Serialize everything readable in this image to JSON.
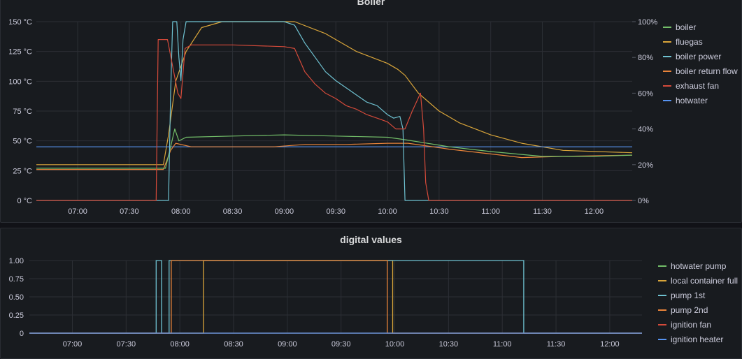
{
  "dashboard": {
    "panels": [
      {
        "title": "Boiler"
      },
      {
        "title": "digital values"
      }
    ]
  },
  "chart_data": [
    {
      "type": "line",
      "title": "Boiler",
      "x_ticks": [
        "07:00",
        "07:30",
        "08:00",
        "08:30",
        "09:00",
        "09:30",
        "10:00",
        "10:30",
        "11:00",
        "11:30",
        "12:00"
      ],
      "x_range_hours": [
        6.6,
        12.37
      ],
      "y_left": {
        "ticks": [
          "0 °C",
          "25 °C",
          "50 °C",
          "75 °C",
          "100 °C",
          "125 °C",
          "150 °C"
        ],
        "range": [
          0,
          150
        ]
      },
      "y_right": {
        "ticks": [
          "0%",
          "20%",
          "40%",
          "60%",
          "80%",
          "100%"
        ],
        "range": [
          0,
          100
        ]
      },
      "grid": true,
      "legend_position": "right",
      "series": [
        {
          "name": "boiler",
          "color": "#73bf69",
          "axis": "left",
          "points": [
            [
              6.6,
              27
            ],
            [
              7.85,
              27
            ],
            [
              7.9,
              45
            ],
            [
              7.94,
              60
            ],
            [
              7.98,
              50
            ],
            [
              8.05,
              53
            ],
            [
              8.5,
              54
            ],
            [
              9.0,
              55
            ],
            [
              9.5,
              54
            ],
            [
              10.0,
              53
            ],
            [
              10.17,
              51
            ],
            [
              10.6,
              45
            ],
            [
              11.0,
              41
            ],
            [
              11.5,
              37
            ],
            [
              12.0,
              37
            ],
            [
              12.37,
              38
            ]
          ]
        },
        {
          "name": "fluegas",
          "color": "#d9a53a",
          "axis": "left",
          "points": [
            [
              6.6,
              30
            ],
            [
              7.83,
              30
            ],
            [
              7.88,
              55
            ],
            [
              7.95,
              100
            ],
            [
              8.05,
              125
            ],
            [
              8.2,
              145
            ],
            [
              8.4,
              150
            ],
            [
              9.1,
              150
            ],
            [
              9.4,
              140
            ],
            [
              9.7,
              125
            ],
            [
              10.0,
              115
            ],
            [
              10.1,
              110
            ],
            [
              10.17,
              105
            ],
            [
              10.3,
              90
            ],
            [
              10.5,
              75
            ],
            [
              10.7,
              65
            ],
            [
              11.0,
              55
            ],
            [
              11.3,
              48
            ],
            [
              11.7,
              42
            ],
            [
              12.37,
              40
            ]
          ]
        },
        {
          "name": "boiler power",
          "color": "#6ec1d0",
          "axis": "right",
          "points": [
            [
              6.6,
              0
            ],
            [
              7.88,
              0
            ],
            [
              7.9,
              60
            ],
            [
              7.92,
              100
            ],
            [
              7.96,
              100
            ],
            [
              7.98,
              80
            ],
            [
              8.0,
              67
            ],
            [
              8.02,
              90
            ],
            [
              8.05,
              100
            ],
            [
              8.6,
              100
            ],
            [
              9.0,
              100
            ],
            [
              9.1,
              98
            ],
            [
              9.2,
              88
            ],
            [
              9.3,
              80
            ],
            [
              9.4,
              72
            ],
            [
              9.5,
              67
            ],
            [
              9.6,
              63
            ],
            [
              9.7,
              59
            ],
            [
              9.8,
              55
            ],
            [
              9.9,
              53
            ],
            [
              10.0,
              48
            ],
            [
              10.06,
              46
            ],
            [
              10.12,
              47
            ],
            [
              10.15,
              40
            ],
            [
              10.17,
              0
            ],
            [
              12.37,
              0
            ]
          ]
        },
        {
          "name": "boiler return flow",
          "color": "#e8833a",
          "axis": "left",
          "points": [
            [
              6.6,
              26
            ],
            [
              7.83,
              26
            ],
            [
              7.9,
              42
            ],
            [
              7.95,
              48
            ],
            [
              8.1,
              45
            ],
            [
              8.5,
              45
            ],
            [
              8.9,
              45
            ],
            [
              9.2,
              47
            ],
            [
              9.6,
              47
            ],
            [
              10.0,
              48
            ],
            [
              10.2,
              48
            ],
            [
              10.6,
              43
            ],
            [
              11.0,
              39
            ],
            [
              11.3,
              36
            ],
            [
              11.7,
              37
            ],
            [
              12.37,
              38
            ]
          ]
        },
        {
          "name": "exhaust fan",
          "color": "#d44a3a",
          "axis": "right",
          "points": [
            [
              6.6,
              0
            ],
            [
              7.76,
              0
            ],
            [
              7.78,
              90
            ],
            [
              7.87,
              90
            ],
            [
              7.92,
              75
            ],
            [
              7.97,
              60
            ],
            [
              8.0,
              57
            ],
            [
              8.04,
              85
            ],
            [
              8.1,
              87
            ],
            [
              8.5,
              87
            ],
            [
              9.0,
              86
            ],
            [
              9.1,
              85
            ],
            [
              9.2,
              72
            ],
            [
              9.3,
              65
            ],
            [
              9.4,
              60
            ],
            [
              9.5,
              57
            ],
            [
              9.6,
              53
            ],
            [
              9.7,
              51
            ],
            [
              9.8,
              48
            ],
            [
              9.9,
              46
            ],
            [
              10.0,
              44
            ],
            [
              10.08,
              40
            ],
            [
              10.17,
              40
            ],
            [
              10.24,
              50
            ],
            [
              10.28,
              55
            ],
            [
              10.32,
              60
            ],
            [
              10.35,
              40
            ],
            [
              10.37,
              10
            ],
            [
              10.4,
              0
            ],
            [
              12.37,
              0
            ]
          ]
        },
        {
          "name": "hotwater",
          "color": "#5794f2",
          "axis": "left",
          "points": [
            [
              6.6,
              45
            ],
            [
              12.37,
              45
            ]
          ]
        }
      ]
    },
    {
      "type": "line",
      "title": "digital values",
      "x_ticks": [
        "07:00",
        "07:30",
        "08:00",
        "08:30",
        "09:00",
        "09:30",
        "10:00",
        "10:30",
        "11:00",
        "11:30",
        "12:00"
      ],
      "x_range_hours": [
        6.6,
        12.3
      ],
      "y": {
        "ticks": [
          "0",
          "0.25",
          "0.50",
          "0.75",
          "1.00"
        ],
        "range": [
          0,
          1
        ]
      },
      "grid": true,
      "legend_position": "right",
      "series": [
        {
          "name": "hotwater pump",
          "color": "#73bf69",
          "points": [
            [
              6.6,
              0
            ],
            [
              12.3,
              0
            ]
          ]
        },
        {
          "name": "local container full",
          "color": "#d9a53a",
          "points": [
            [
              6.6,
              0
            ],
            [
              8.22,
              0
            ],
            [
              8.22,
              1
            ],
            [
              9.98,
              1
            ],
            [
              9.98,
              0
            ],
            [
              12.3,
              0
            ]
          ]
        },
        {
          "name": "pump 1st",
          "color": "#6ec1d0",
          "points": [
            [
              6.6,
              0
            ],
            [
              7.78,
              0
            ],
            [
              7.78,
              1
            ],
            [
              7.83,
              1
            ],
            [
              7.83,
              0
            ],
            [
              7.9,
              0
            ],
            [
              7.9,
              1
            ],
            [
              11.2,
              1
            ],
            [
              11.2,
              0
            ],
            [
              12.3,
              0
            ]
          ]
        },
        {
          "name": "pump 2nd",
          "color": "#e8833a",
          "points": [
            [
              6.6,
              0
            ],
            [
              7.92,
              0
            ],
            [
              7.92,
              1
            ],
            [
              9.93,
              1
            ],
            [
              9.93,
              0
            ],
            [
              12.3,
              0
            ]
          ]
        },
        {
          "name": "ignition fan",
          "color": "#d44a3a",
          "points": [
            [
              6.6,
              0
            ],
            [
              12.3,
              0
            ]
          ]
        },
        {
          "name": "ignition heater",
          "color": "#5794f2",
          "points": [
            [
              6.6,
              0
            ],
            [
              12.3,
              0
            ]
          ]
        }
      ]
    }
  ]
}
